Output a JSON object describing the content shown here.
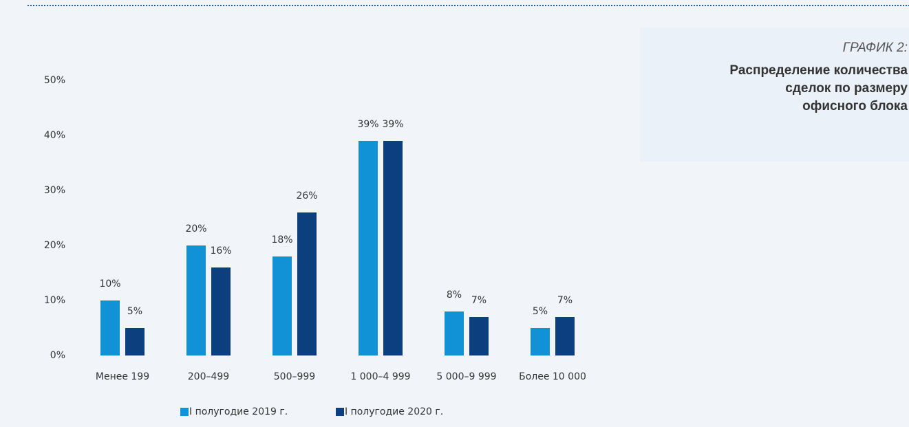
{
  "chart_data": {
    "type": "bar",
    "label": "ГРАФИК 2:",
    "title": [
      "Распределение количества",
      "сделок по размеру",
      "офисного блока"
    ],
    "categories": [
      "Менее 199",
      "200–499",
      "500–999",
      "1 000–4 999",
      "5 000–9 999",
      "Более 10 000"
    ],
    "series": [
      {
        "name": "I полугодие 2019 г.",
        "color": "#1191d6",
        "values": [
          10,
          20,
          18,
          39,
          8,
          5
        ],
        "value_labels": [
          "10%",
          "20%",
          "18%",
          "39%",
          "8%",
          "5%"
        ]
      },
      {
        "name": "I полугодие 2020 г.",
        "color": "#0b3f7e",
        "values": [
          5,
          16,
          26,
          39,
          7,
          7
        ],
        "value_labels": [
          "5%",
          "16%",
          "26%",
          "39%",
          "7%",
          "7%"
        ]
      }
    ],
    "ylim": [
      0,
      50
    ],
    "yticks": [
      {
        "value": 0,
        "label": "0%"
      },
      {
        "value": 10,
        "label": "10%"
      },
      {
        "value": 20,
        "label": "20%"
      },
      {
        "value": 30,
        "label": "30%"
      },
      {
        "value": 40,
        "label": "40%"
      },
      {
        "value": 50,
        "label": "50%"
      }
    ],
    "grid": false,
    "legend": "bottom"
  }
}
